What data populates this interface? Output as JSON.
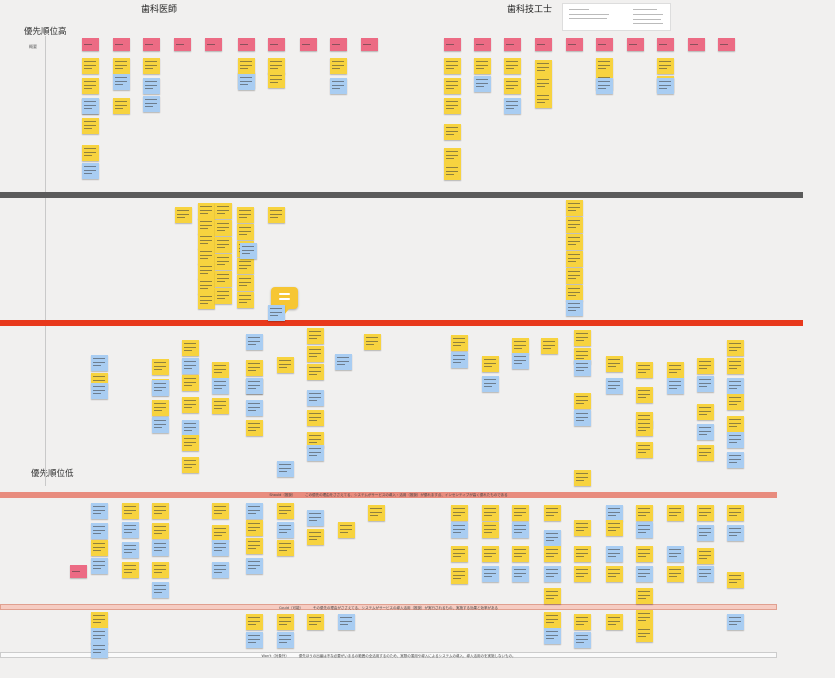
{
  "columns": {
    "dentist": "歯科医師",
    "technician": "歯科技工士"
  },
  "priority": {
    "high": "優先順位高",
    "low": "優先順位低",
    "summary": "概要"
  },
  "bands": {
    "should": "Should（推奨）　　　 この優先の理由をささえてる、システムがサービスの導入・活用（推奨）が優れます点、インセンティブが高く優れたものである",
    "could": "Could（可能）　　　 その優先の理由がささえてる、システムがサービスの導入活用（推奨）が実行されるもの、実施する効果と効率がある",
    "wont": "Won't（対象外）　　　 優先ほうの出番は不な必要がいまるの範囲の全活用するのため、実際の運用や導入によるシステムの導入、導入活用のを実施しないもの。"
  },
  "colors": {
    "background": "#f1f0ef",
    "pink_note": "#ec6b84",
    "yellow_note": "#f7d33f",
    "blue_note": "#a9cdf2",
    "divider_dark": "#5b5b5b",
    "divider_red": "#e8391c",
    "band_should": "#e88c7e",
    "band_could": "#f6ccc2",
    "comment": "#f6c634"
  },
  "icons": {
    "comment": "comment-bubble-icon"
  }
}
